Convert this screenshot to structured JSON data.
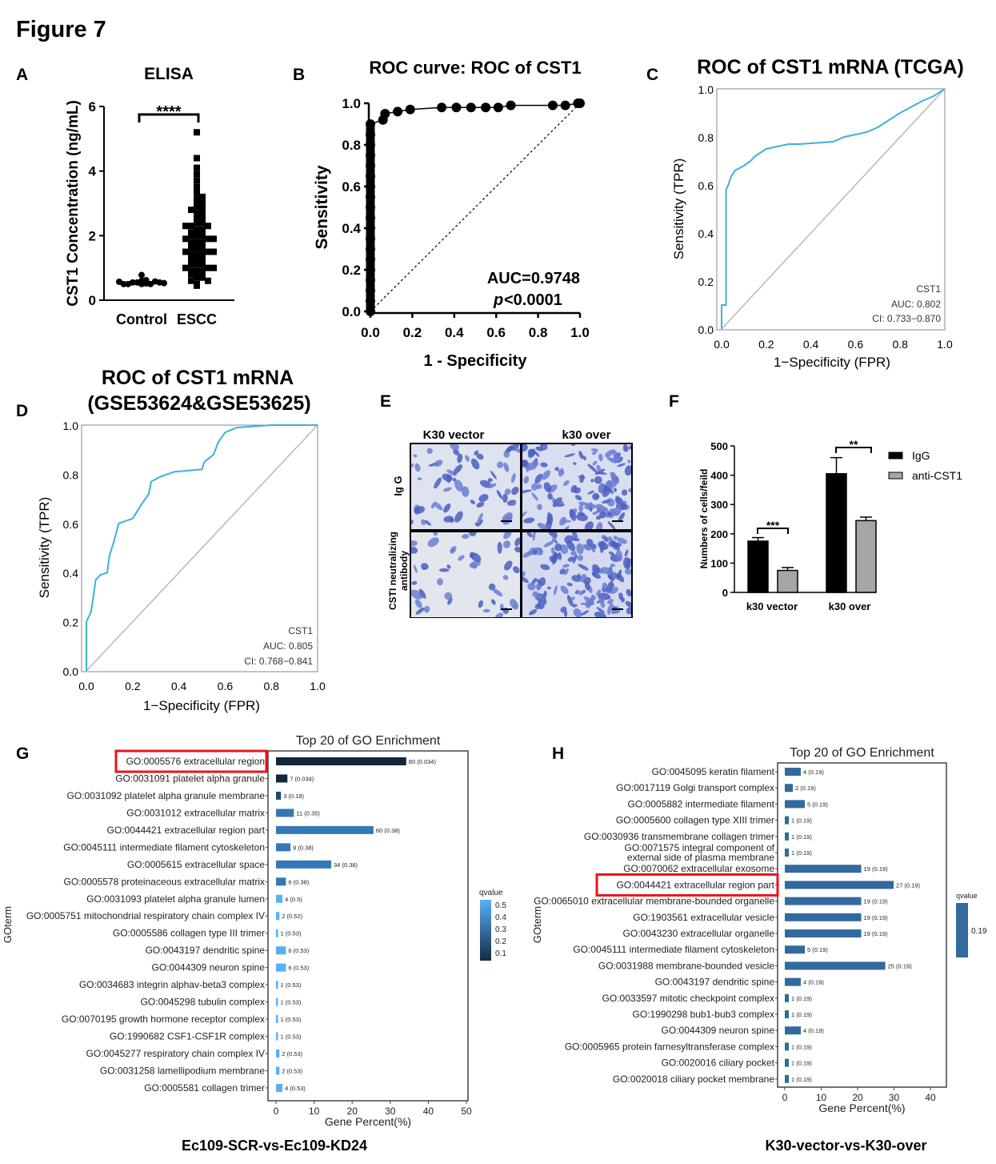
{
  "figure_title": "Figure 7",
  "chart_data": [
    {
      "panel": "A",
      "type": "scatter",
      "title": "ELISA",
      "ylabel": "CST1 Concentration (ng/mL)",
      "ylim": [
        0,
        6
      ],
      "yticks": [
        "0",
        "2",
        "4",
        "6"
      ],
      "categories": [
        "Control",
        "ESCC"
      ],
      "significance": "****",
      "series": [
        {
          "name": "Control",
          "values": [
            0.5,
            0.52,
            0.55,
            0.5,
            0.6,
            0.55,
            0.58,
            0.5,
            0.62,
            0.78,
            0.55,
            0.5,
            0.53,
            0.57
          ]
        },
        {
          "name": "ESCC",
          "values": [
            5.2,
            4.4,
            4.1,
            3.9,
            3.7,
            3.5,
            3.4,
            3.3,
            3.2,
            3.1,
            3.0,
            3.0,
            2.9,
            2.8,
            2.8,
            2.7,
            2.7,
            2.6,
            2.6,
            2.5,
            2.5,
            2.4,
            2.4,
            2.3,
            2.3,
            2.3,
            2.2,
            2.2,
            2.1,
            2.1,
            2.1,
            2.0,
            2.0,
            2.0,
            1.9,
            1.9,
            1.9,
            1.8,
            1.8,
            1.8,
            1.7,
            1.7,
            1.7,
            1.6,
            1.6,
            1.6,
            1.5,
            1.5,
            1.5,
            1.4,
            1.4,
            1.4,
            1.3,
            1.3,
            1.3,
            1.2,
            1.2,
            1.2,
            1.1,
            1.1,
            1.1,
            1.0,
            1.0,
            1.0,
            0.9,
            0.9,
            0.9,
            0.8,
            0.8,
            0.8,
            0.7,
            0.7,
            0.6,
            0.6,
            0.5,
            0.45
          ]
        }
      ]
    },
    {
      "panel": "B",
      "type": "line",
      "title": "ROC curve: ROC of CST1",
      "xlabel": "1 - Specificity",
      "ylabel": "Sensitivity",
      "xlim": [
        0,
        1
      ],
      "ylim": [
        0,
        1
      ],
      "ticks": [
        "0.0",
        "0.2",
        "0.4",
        "0.6",
        "0.8",
        "1.0"
      ],
      "annotation_auc": "AUC=0.9748",
      "annotation_p_italic": "p",
      "annotation_p": "<0.0001",
      "points": [
        [
          0,
          0
        ],
        [
          0,
          0.05
        ],
        [
          0,
          0.1
        ],
        [
          0,
          0.15
        ],
        [
          0,
          0.2
        ],
        [
          0,
          0.25
        ],
        [
          0,
          0.3
        ],
        [
          0,
          0.35
        ],
        [
          0,
          0.4
        ],
        [
          0,
          0.45
        ],
        [
          0,
          0.5
        ],
        [
          0,
          0.55
        ],
        [
          0,
          0.6
        ],
        [
          0,
          0.65
        ],
        [
          0,
          0.7
        ],
        [
          0,
          0.75
        ],
        [
          0,
          0.8
        ],
        [
          0,
          0.85
        ],
        [
          0,
          0.9
        ],
        [
          0.06,
          0.92
        ],
        [
          0.07,
          0.95
        ],
        [
          0.13,
          0.96
        ],
        [
          0.19,
          0.97
        ],
        [
          0.34,
          0.98
        ],
        [
          0.41,
          0.98
        ],
        [
          0.48,
          0.98
        ],
        [
          0.55,
          0.98
        ],
        [
          0.61,
          0.98
        ],
        [
          0.67,
          0.99
        ],
        [
          0.87,
          0.99
        ],
        [
          0.93,
          0.99
        ],
        [
          0.99,
          1.0
        ],
        [
          1,
          1
        ]
      ]
    },
    {
      "panel": "C",
      "type": "line",
      "title": "ROC of CST1 mRNA (TCGA)",
      "xlabel": "1−Specificity (FPR)",
      "ylabel": "Sensitivity (TPR)",
      "xlim": [
        0,
        1
      ],
      "ylim": [
        0,
        1
      ],
      "ticks": [
        "0.0",
        "0.2",
        "0.4",
        "0.6",
        "0.8",
        "1.0"
      ],
      "legend": [
        "CST1",
        "AUC: 0.802",
        "CI: 0.733−0.870"
      ],
      "points": [
        [
          0,
          0
        ],
        [
          0,
          0.1
        ],
        [
          0.02,
          0.1
        ],
        [
          0.02,
          0.58
        ],
        [
          0.03,
          0.6
        ],
        [
          0.04,
          0.63
        ],
        [
          0.06,
          0.66
        ],
        [
          0.1,
          0.68
        ],
        [
          0.13,
          0.7
        ],
        [
          0.15,
          0.72
        ],
        [
          0.2,
          0.75
        ],
        [
          0.3,
          0.77
        ],
        [
          0.35,
          0.77
        ],
        [
          0.5,
          0.78
        ],
        [
          0.55,
          0.8
        ],
        [
          0.65,
          0.82
        ],
        [
          0.7,
          0.84
        ],
        [
          0.75,
          0.87
        ],
        [
          0.8,
          0.9
        ],
        [
          0.9,
          0.95
        ],
        [
          0.95,
          0.97
        ],
        [
          1,
          1
        ]
      ]
    },
    {
      "panel": "D",
      "type": "line",
      "title_line1": "ROC of CST1 mRNA",
      "title_line2": "(GSE53624&GSE53625)",
      "xlabel": "1−Specificity (FPR)",
      "ylabel": "Sensitivity (TPR)",
      "xlim": [
        0,
        1
      ],
      "ylim": [
        0,
        1
      ],
      "ticks": [
        "0.0",
        "0.2",
        "0.4",
        "0.6",
        "0.8",
        "1.0"
      ],
      "legend": [
        "CST1",
        "AUC: 0.805",
        "CI: 0.768−0.841"
      ],
      "points": [
        [
          0,
          0
        ],
        [
          0,
          0.2
        ],
        [
          0.02,
          0.24
        ],
        [
          0.03,
          0.3
        ],
        [
          0.04,
          0.37
        ],
        [
          0.06,
          0.39
        ],
        [
          0.09,
          0.4
        ],
        [
          0.1,
          0.47
        ],
        [
          0.12,
          0.53
        ],
        [
          0.14,
          0.6
        ],
        [
          0.2,
          0.62
        ],
        [
          0.24,
          0.68
        ],
        [
          0.27,
          0.72
        ],
        [
          0.28,
          0.77
        ],
        [
          0.32,
          0.79
        ],
        [
          0.38,
          0.81
        ],
        [
          0.5,
          0.82
        ],
        [
          0.51,
          0.85
        ],
        [
          0.55,
          0.88
        ],
        [
          0.57,
          0.93
        ],
        [
          0.6,
          0.97
        ],
        [
          0.65,
          0.99
        ],
        [
          0.8,
          1
        ],
        [
          1,
          1
        ]
      ]
    },
    {
      "panel": "F",
      "type": "bar",
      "ylabel": "Numbers of cells/feild",
      "ylim": [
        0,
        500
      ],
      "yticks": [
        "0",
        "100",
        "200",
        "300",
        "400",
        "500"
      ],
      "categories": [
        "k30 vector",
        "k30 over"
      ],
      "series": [
        {
          "name": "IgG",
          "color": "#000000",
          "values": [
            175,
            405
          ],
          "errors": [
            12,
            55
          ]
        },
        {
          "name": "anti-CST1",
          "color": "#a6a6a8",
          "values": [
            75,
            245
          ],
          "errors": [
            10,
            12
          ]
        }
      ],
      "significance": [
        "***",
        "**"
      ]
    },
    {
      "panel": "G",
      "type": "bar",
      "title": "Top 20 of GO Enrichment",
      "xlabel": "Gene Percent(%)",
      "ylabel": "GOterm",
      "xlim": [
        0,
        50
      ],
      "xticks": [
        "0",
        "10",
        "20",
        "30",
        "40",
        "50"
      ],
      "legend_title": "qvalue",
      "legend_ticks": [
        "0.5",
        "0.4",
        "0.3",
        "0.2",
        "0.1"
      ],
      "footer": "Ec109-SCR-vs-Ec109-KD24",
      "highlighted": "GO:0005576 extracellular region",
      "terms": [
        {
          "term": "GO:0005576 extracellular region",
          "label": "80 (0.034)",
          "percent": 34.2,
          "q": 0.034
        },
        {
          "term": "GO:0031091 platelet alpha granule",
          "label": "7 (0.034)",
          "percent": 3.0,
          "q": 0.034
        },
        {
          "term": "GO:0031092 platelet alpha granule membrane",
          "label": "3 (0.18)",
          "percent": 1.3,
          "q": 0.18
        },
        {
          "term": "GO:0031012 extracellular matrix",
          "label": "11 (0.35)",
          "percent": 4.7,
          "q": 0.35
        },
        {
          "term": "GO:0044421 extracellular region part",
          "label": "60 (0.38)",
          "percent": 25.6,
          "q": 0.38
        },
        {
          "term": "GO:0045111 intermediate filament cytoskeleton",
          "label": "9 (0.38)",
          "percent": 3.8,
          "q": 0.38
        },
        {
          "term": "GO:0005615 extracellular space",
          "label": "34 (0.38)",
          "percent": 14.5,
          "q": 0.38
        },
        {
          "term": "GO:0005578 proteinaceous extracellular matrix",
          "label": "6 (0.38)",
          "percent": 2.6,
          "q": 0.38
        },
        {
          "term": "GO:0031093 platelet alpha granule lumen",
          "label": "4 (0.5)",
          "percent": 1.7,
          "q": 0.5
        },
        {
          "term": "GO:0005751 mitochondrial respiratory chain complex IV",
          "label": "2 (0.52)",
          "percent": 0.9,
          "q": 0.52
        },
        {
          "term": "GO:0005586 collagen type III trimer",
          "label": "1 (0.53)",
          "percent": 0.43,
          "q": 0.53
        },
        {
          "term": "GO:0043197 dendritic spine",
          "label": "6 (0.53)",
          "percent": 2.6,
          "q": 0.53
        },
        {
          "term": "GO:0044309 neuron spine",
          "label": "6 (0.53)",
          "percent": 2.6,
          "q": 0.53
        },
        {
          "term": "GO:0034683 integrin alphav-beta3 complex",
          "label": "1 (0.53)",
          "percent": 0.43,
          "q": 0.53
        },
        {
          "term": "GO:0045298 tubulin complex",
          "label": "1 (0.53)",
          "percent": 0.43,
          "q": 0.53
        },
        {
          "term": "GO:0070195 growth hormone receptor complex",
          "label": "1 (0.53)",
          "percent": 0.43,
          "q": 0.53
        },
        {
          "term": "GO:1990682 CSF1-CSF1R complex",
          "label": "1 (0.53)",
          "percent": 0.43,
          "q": 0.53
        },
        {
          "term": "GO:0045277 respiratory chain complex IV",
          "label": "2 (0.53)",
          "percent": 0.9,
          "q": 0.53
        },
        {
          "term": "GO:0031258 lamellipodium membrane",
          "label": "2 (0.53)",
          "percent": 0.9,
          "q": 0.53
        },
        {
          "term": "GO:0005581 collagen trimer",
          "label": "4 (0.53)",
          "percent": 1.7,
          "q": 0.53
        }
      ]
    },
    {
      "panel": "H",
      "type": "bar",
      "title": "Top 20 of GO Enrichment",
      "xlabel": "Gene Percent(%)",
      "ylabel": "GOterm",
      "xlim": [
        0,
        40
      ],
      "xticks": [
        "0",
        "10",
        "20",
        "30",
        "40"
      ],
      "legend_title": "qvalue",
      "legend_ticks": [
        "0.19"
      ],
      "footer": "K30-vector-vs-K30-over",
      "highlighted": "GO:0044421 extracellular region part",
      "terms": [
        {
          "term": "GO:0045095 keratin filament",
          "label": "4 (0.19)",
          "percent": 4.4,
          "q": 0.19
        },
        {
          "term": "GO:0017119 Golgi transport complex",
          "label": "2 (0.19)",
          "percent": 2.2,
          "q": 0.19
        },
        {
          "term": "GO:0005882 intermediate filament",
          "label": "5 (0.19)",
          "percent": 5.5,
          "q": 0.19
        },
        {
          "term": "GO:0005600 collagen type XIII trimer",
          "label": "1 (0.19)",
          "percent": 1.1,
          "q": 0.19
        },
        {
          "term": "GO:0030936 transmembrane collagen trimer",
          "label": "1 (0.19)",
          "percent": 1.1,
          "q": 0.19
        },
        {
          "term": "GO:0071575 integral component of\nexternal side of plasma membrane",
          "label": "1 (0.19)",
          "percent": 1.1,
          "q": 0.19
        },
        {
          "term": "GO:0070062 extracellular exosome",
          "label": "19 (0.19)",
          "percent": 21.0,
          "q": 0.19
        },
        {
          "term": "GO:0044421 extracellular region part",
          "label": "27 (0.19)",
          "percent": 29.9,
          "q": 0.19
        },
        {
          "term": "GO:0065010 extracellular membrane-bounded organelle",
          "label": "19 (0.19)",
          "percent": 21.0,
          "q": 0.19
        },
        {
          "term": "GO:1903561 extracellular vesicle",
          "label": "19 (0.19)",
          "percent": 21.0,
          "q": 0.19
        },
        {
          "term": "GO:0043230 extracellular organelle",
          "label": "19 (0.19)",
          "percent": 21.0,
          "q": 0.19
        },
        {
          "term": "GO:0045111 intermediate filament cytoskeleton",
          "label": "5 (0.19)",
          "percent": 5.5,
          "q": 0.19
        },
        {
          "term": "GO:0031988 membrane-bounded vesicle",
          "label": "25 (0.19)",
          "percent": 27.6,
          "q": 0.19
        },
        {
          "term": "GO:0043197 dendritic spine",
          "label": "4 (0.19)",
          "percent": 4.4,
          "q": 0.19
        },
        {
          "term": "GO:0033597 mitotic checkpoint complex",
          "label": "1 (0.19)",
          "percent": 1.1,
          "q": 0.19
        },
        {
          "term": "GO:1990298 bub1-bub3 complex",
          "label": "1 (0.19)",
          "percent": 1.1,
          "q": 0.19
        },
        {
          "term": "GO:0044309 neuron spine",
          "label": "4 (0.19)",
          "percent": 4.4,
          "q": 0.19
        },
        {
          "term": "GO:0005965 protein farnesyltransferase complex",
          "label": "1 (0.19)",
          "percent": 1.1,
          "q": 0.19
        },
        {
          "term": "GO:0020016 ciliary pocket",
          "label": "1 (0.19)",
          "percent": 1.1,
          "q": 0.19
        },
        {
          "term": "GO:0020018 ciliary pocket membrane",
          "label": "1 (0.19)",
          "percent": 1.1,
          "q": 0.19
        }
      ]
    }
  ],
  "panel_e": {
    "col_labels": [
      "K30 vector",
      "k30 over"
    ],
    "row_labels": [
      "Ig G",
      "CSTI neutralizing",
      "antibody"
    ]
  },
  "panel_letters": [
    "A",
    "B",
    "C",
    "D",
    "E",
    "F",
    "G",
    "H"
  ],
  "colors": {
    "roc_line": "#3fb0d9",
    "diagonal": "#b8b8b8",
    "highlight": "#e8141b",
    "stain": "#4a5fc0"
  }
}
